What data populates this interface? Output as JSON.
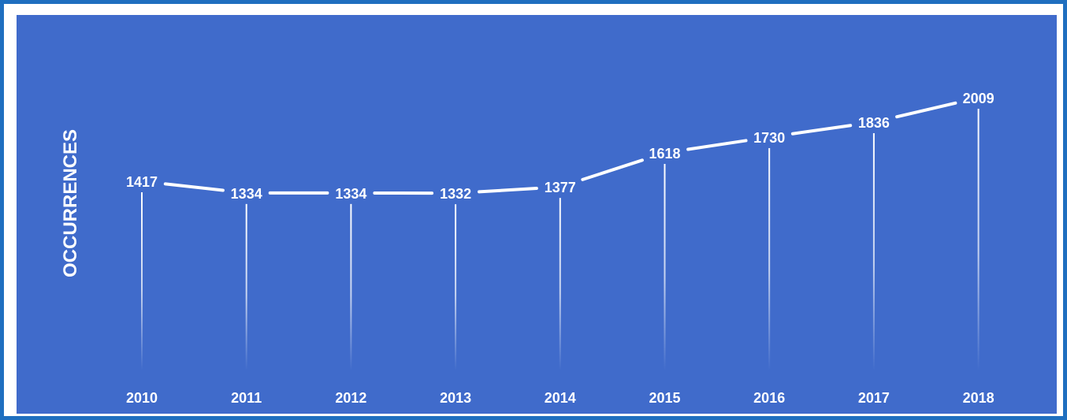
{
  "colors": {
    "frame_border": "#1f6fbf",
    "plot_background": "#406bcb",
    "series_line": "#ffffff",
    "text": "#ffffff"
  },
  "chart_data": {
    "type": "line",
    "title": "",
    "xlabel": "",
    "ylabel": "OCCURRENCES",
    "categories": [
      "2010",
      "2011",
      "2012",
      "2013",
      "2014",
      "2015",
      "2016",
      "2017",
      "2018"
    ],
    "series": [
      {
        "values": [
          1417,
          1334,
          1334,
          1332,
          1377,
          1618,
          1730,
          1836,
          2009
        ]
      }
    ],
    "data_labels": true,
    "drop_lines": true,
    "grid": false,
    "legend": "none"
  }
}
